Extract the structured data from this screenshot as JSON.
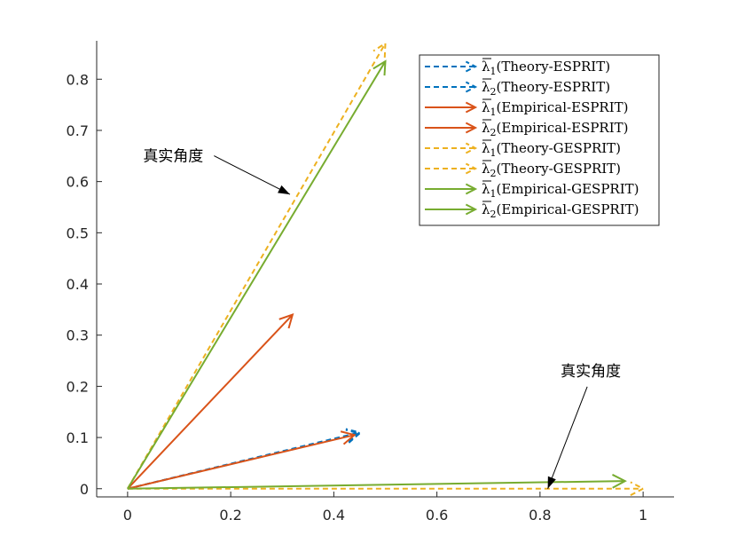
{
  "chart_data": {
    "type": "quiver",
    "title": "",
    "xlabel": "",
    "ylabel": "",
    "xlim": [
      -0.06,
      1.06
    ],
    "ylim": [
      -0.016,
      0.875
    ],
    "x_ticks": [
      0,
      0.2,
      0.4,
      0.6,
      0.8,
      1
    ],
    "x_tick_labels": [
      "0",
      "0.2",
      "0.4",
      "0.6",
      "0.8",
      "1"
    ],
    "y_ticks": [
      0,
      0.1,
      0.2,
      0.3,
      0.4,
      0.5,
      0.6,
      0.7,
      0.8
    ],
    "y_tick_labels": [
      "0",
      "0.1",
      "0.2",
      "0.3",
      "0.4",
      "0.5",
      "0.6",
      "0.7",
      "0.8"
    ],
    "grid": false,
    "legend_position": "top-right",
    "series": [
      {
        "name": "(Theory-ESPRIT)",
        "subscript": "1",
        "color": "#0072BD",
        "dashed": true,
        "vectors": [
          {
            "x0": 0,
            "y0": 0,
            "x1": 0.45,
            "y1": 0.11
          }
        ]
      },
      {
        "name": "(Theory-ESPRIT)",
        "subscript": "2",
        "color": "#0072BD",
        "dashed": true,
        "vectors": [
          {
            "x0": 0,
            "y0": 0,
            "x1": 0.45,
            "y1": 0.108
          }
        ]
      },
      {
        "name": "(Empirical-ESPRIT)",
        "subscript": "1",
        "color": "#D95319",
        "dashed": false,
        "vectors": [
          {
            "x0": 0,
            "y0": 0,
            "x1": 0.32,
            "y1": 0.34
          }
        ]
      },
      {
        "name": "(Empirical-ESPRIT)",
        "subscript": "2",
        "color": "#D95319",
        "dashed": false,
        "vectors": [
          {
            "x0": 0,
            "y0": 0,
            "x1": 0.44,
            "y1": 0.105
          }
        ]
      },
      {
        "name": "(Theory-GESPRIT)",
        "subscript": "1",
        "color": "#EDB120",
        "dashed": true,
        "vectors": [
          {
            "x0": 0,
            "y0": 0,
            "x1": 0.5,
            "y1": 0.87
          }
        ]
      },
      {
        "name": "(Theory-GESPRIT)",
        "subscript": "2",
        "color": "#EDB120",
        "dashed": true,
        "vectors": [
          {
            "x0": 0,
            "y0": 0,
            "x1": 1.0,
            "y1": 0.0
          }
        ]
      },
      {
        "name": "(Empirical-GESPRIT)",
        "subscript": "1",
        "color": "#77AC30",
        "dashed": false,
        "vectors": [
          {
            "x0": 0,
            "y0": 0,
            "x1": 0.5,
            "y1": 0.835
          }
        ]
      },
      {
        "name": "(Empirical-GESPRIT)",
        "subscript": "2",
        "color": "#77AC30",
        "dashed": false,
        "vectors": [
          {
            "x0": 0,
            "y0": 0,
            "x1": 0.965,
            "y1": 0.015
          }
        ]
      }
    ],
    "annotations": [
      {
        "text": "真实角度",
        "text_x": 0.03,
        "text_y": 0.64,
        "arrow_x": 0.315,
        "arrow_y": 0.575
      },
      {
        "text": "真实角度",
        "text_x": 0.84,
        "text_y": 0.22,
        "arrow_x": 0.815,
        "arrow_y": 0.0
      }
    ]
  }
}
